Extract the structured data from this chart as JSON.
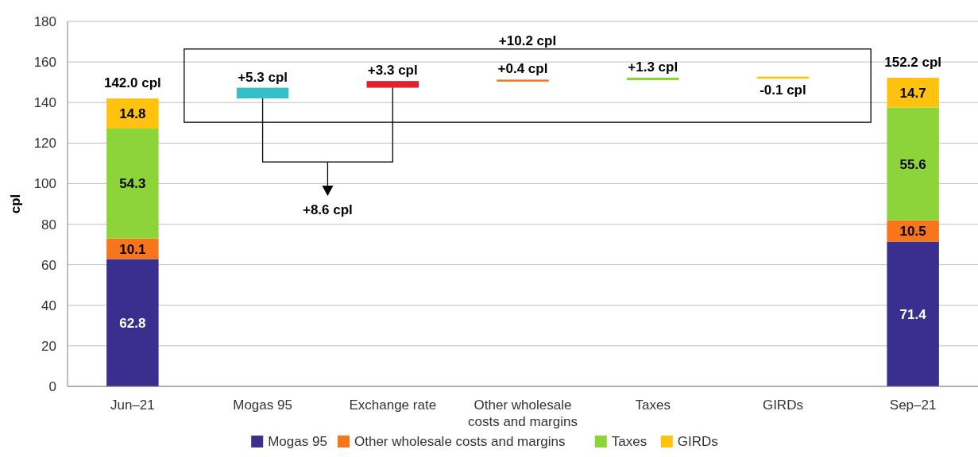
{
  "chart_data": {
    "type": "bar",
    "stacked": true,
    "ylabel": "cpl",
    "categories": [
      "Jun–21",
      "Mogas 95",
      "Exchange rate",
      "Other wholesale costs and margins",
      "Taxes",
      "GIRDs",
      "Sep–21"
    ],
    "series": [
      {
        "name": "Mogas 95",
        "color": "#3a2f8f",
        "values": [
          62.8,
          null,
          null,
          null,
          null,
          null,
          71.4
        ],
        "value_labels": [
          "62.8",
          null,
          null,
          null,
          null,
          null,
          "71.4"
        ]
      },
      {
        "name": "Other wholesale costs and margins",
        "color": "#f7761b",
        "values": [
          10.1,
          null,
          null,
          null,
          null,
          null,
          10.5
        ],
        "value_labels": [
          "10.1",
          null,
          null,
          null,
          null,
          null,
          "10.5"
        ]
      },
      {
        "name": "Taxes",
        "color": "#8cd43a",
        "values": [
          54.3,
          null,
          null,
          null,
          null,
          null,
          55.6
        ],
        "value_labels": [
          "54.3",
          null,
          null,
          null,
          null,
          null,
          "55.6"
        ]
      },
      {
        "name": "GIRDs",
        "color": "#ffc20e",
        "values": [
          14.8,
          null,
          null,
          null,
          null,
          null,
          14.7
        ],
        "value_labels": [
          "14.8",
          null,
          null,
          null,
          null,
          null,
          "14.7"
        ]
      },
      {
        "colors": [
          null,
          "#35bfc9",
          "#e5202e",
          "#f7761b",
          "#8cd43a",
          "#ffc20e",
          null
        ],
        "values": [
          null,
          5.3,
          3.3,
          0.4,
          1.3,
          -0.1,
          null
        ],
        "base": [
          null,
          142.0,
          147.3,
          150.6,
          151.0,
          152.3,
          null
        ],
        "value_labels": [
          null,
          "+5.3 cpl",
          "+3.3 cpl",
          "+0.4 cpl",
          "+1.3 cpl",
          "-0.1 cpl",
          null
        ]
      }
    ],
    "totals": [
      "142.0 cpl",
      null,
      null,
      null,
      null,
      null,
      "152.2 cpl"
    ],
    "annotations": [
      "+10.2 cpl",
      "+8.6 cpl"
    ],
    "ylim": [
      0,
      180
    ],
    "yticks": [
      0,
      20,
      40,
      60,
      80,
      100,
      120,
      140,
      160,
      180
    ],
    "grid": "y",
    "legend": "bottom"
  }
}
